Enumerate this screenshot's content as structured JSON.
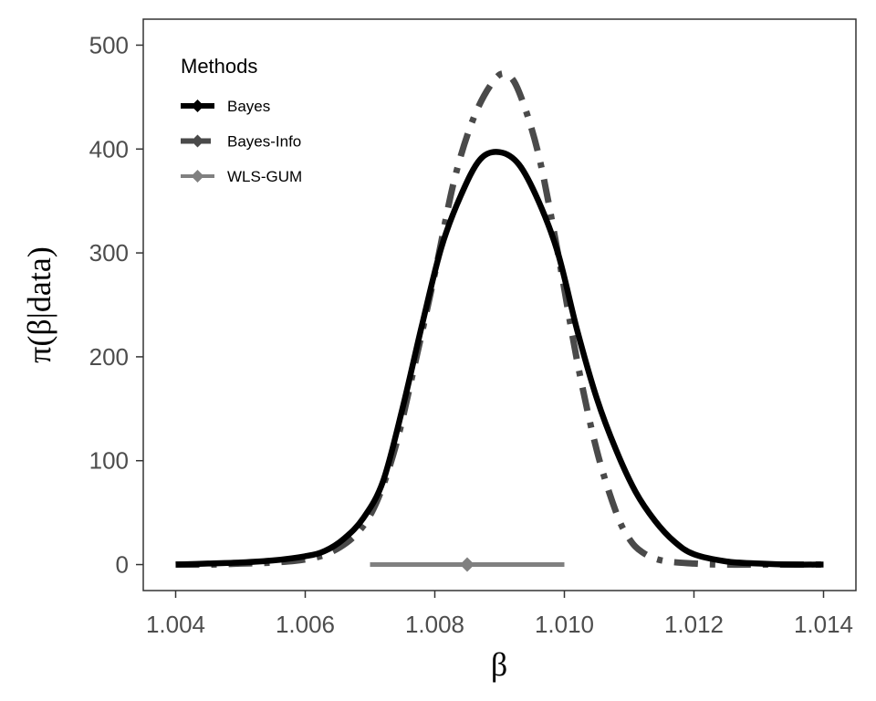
{
  "chart_data": {
    "type": "line",
    "xlabel": "β",
    "ylabel": "π(β|data)",
    "xlim": [
      1.0035,
      1.0145
    ],
    "ylim": [
      -25,
      525
    ],
    "xticks": [
      1.004,
      1.006,
      1.008,
      1.01,
      1.012,
      1.014
    ],
    "xtick_labels": [
      "1.004",
      "1.006",
      "1.008",
      "1.010",
      "1.012",
      "1.014"
    ],
    "yticks": [
      0,
      100,
      200,
      300,
      400,
      500
    ],
    "ytick_labels": [
      "0",
      "100",
      "200",
      "300",
      "400",
      "500"
    ],
    "grid": false,
    "legend": {
      "title": "Methods",
      "position": "top-left",
      "entries": [
        "Bayes",
        "Bayes-Info",
        "WLS-GUM"
      ]
    },
    "series": [
      {
        "name": "Bayes",
        "color": "#000000",
        "style": "solid",
        "x": [
          1.004,
          1.0045,
          1.005,
          1.0055,
          1.006,
          1.0063,
          1.0066,
          1.0069,
          1.0072,
          1.0075,
          1.0078,
          1.0081,
          1.0084,
          1.0087,
          1.009,
          1.0093,
          1.0096,
          1.0099,
          1.0102,
          1.0105,
          1.0108,
          1.0111,
          1.0114,
          1.0117,
          1.012,
          1.0125,
          1.013,
          1.0135,
          1.014
        ],
        "y": [
          0,
          1,
          2,
          4,
          8,
          13,
          25,
          45,
          80,
          150,
          230,
          305,
          355,
          390,
          397,
          385,
          350,
          300,
          225,
          160,
          110,
          70,
          42,
          22,
          10,
          3,
          1,
          0,
          0
        ]
      },
      {
        "name": "Bayes-Info",
        "color": "#4a4a4a",
        "style": "dashdot",
        "x": [
          1.004,
          1.0045,
          1.005,
          1.0055,
          1.006,
          1.0064,
          1.0068,
          1.0071,
          1.0074,
          1.0077,
          1.008,
          1.0083,
          1.0086,
          1.0089,
          1.0091,
          1.0093,
          1.0096,
          1.0099,
          1.0102,
          1.0105,
          1.0108,
          1.011,
          1.0112,
          1.0115,
          1.012,
          1.0125,
          1.013,
          1.0135,
          1.014
        ],
        "y": [
          0,
          0,
          1,
          2,
          5,
          12,
          30,
          60,
          115,
          195,
          280,
          370,
          430,
          465,
          472,
          455,
          395,
          300,
          195,
          110,
          50,
          25,
          12,
          4,
          1,
          0,
          0,
          0,
          0
        ]
      },
      {
        "name": "WLS-GUM",
        "color": "#808080",
        "style": "interval",
        "point": {
          "x": 1.0085,
          "y": 0
        },
        "interval": [
          1.007,
          1.01
        ]
      }
    ]
  }
}
